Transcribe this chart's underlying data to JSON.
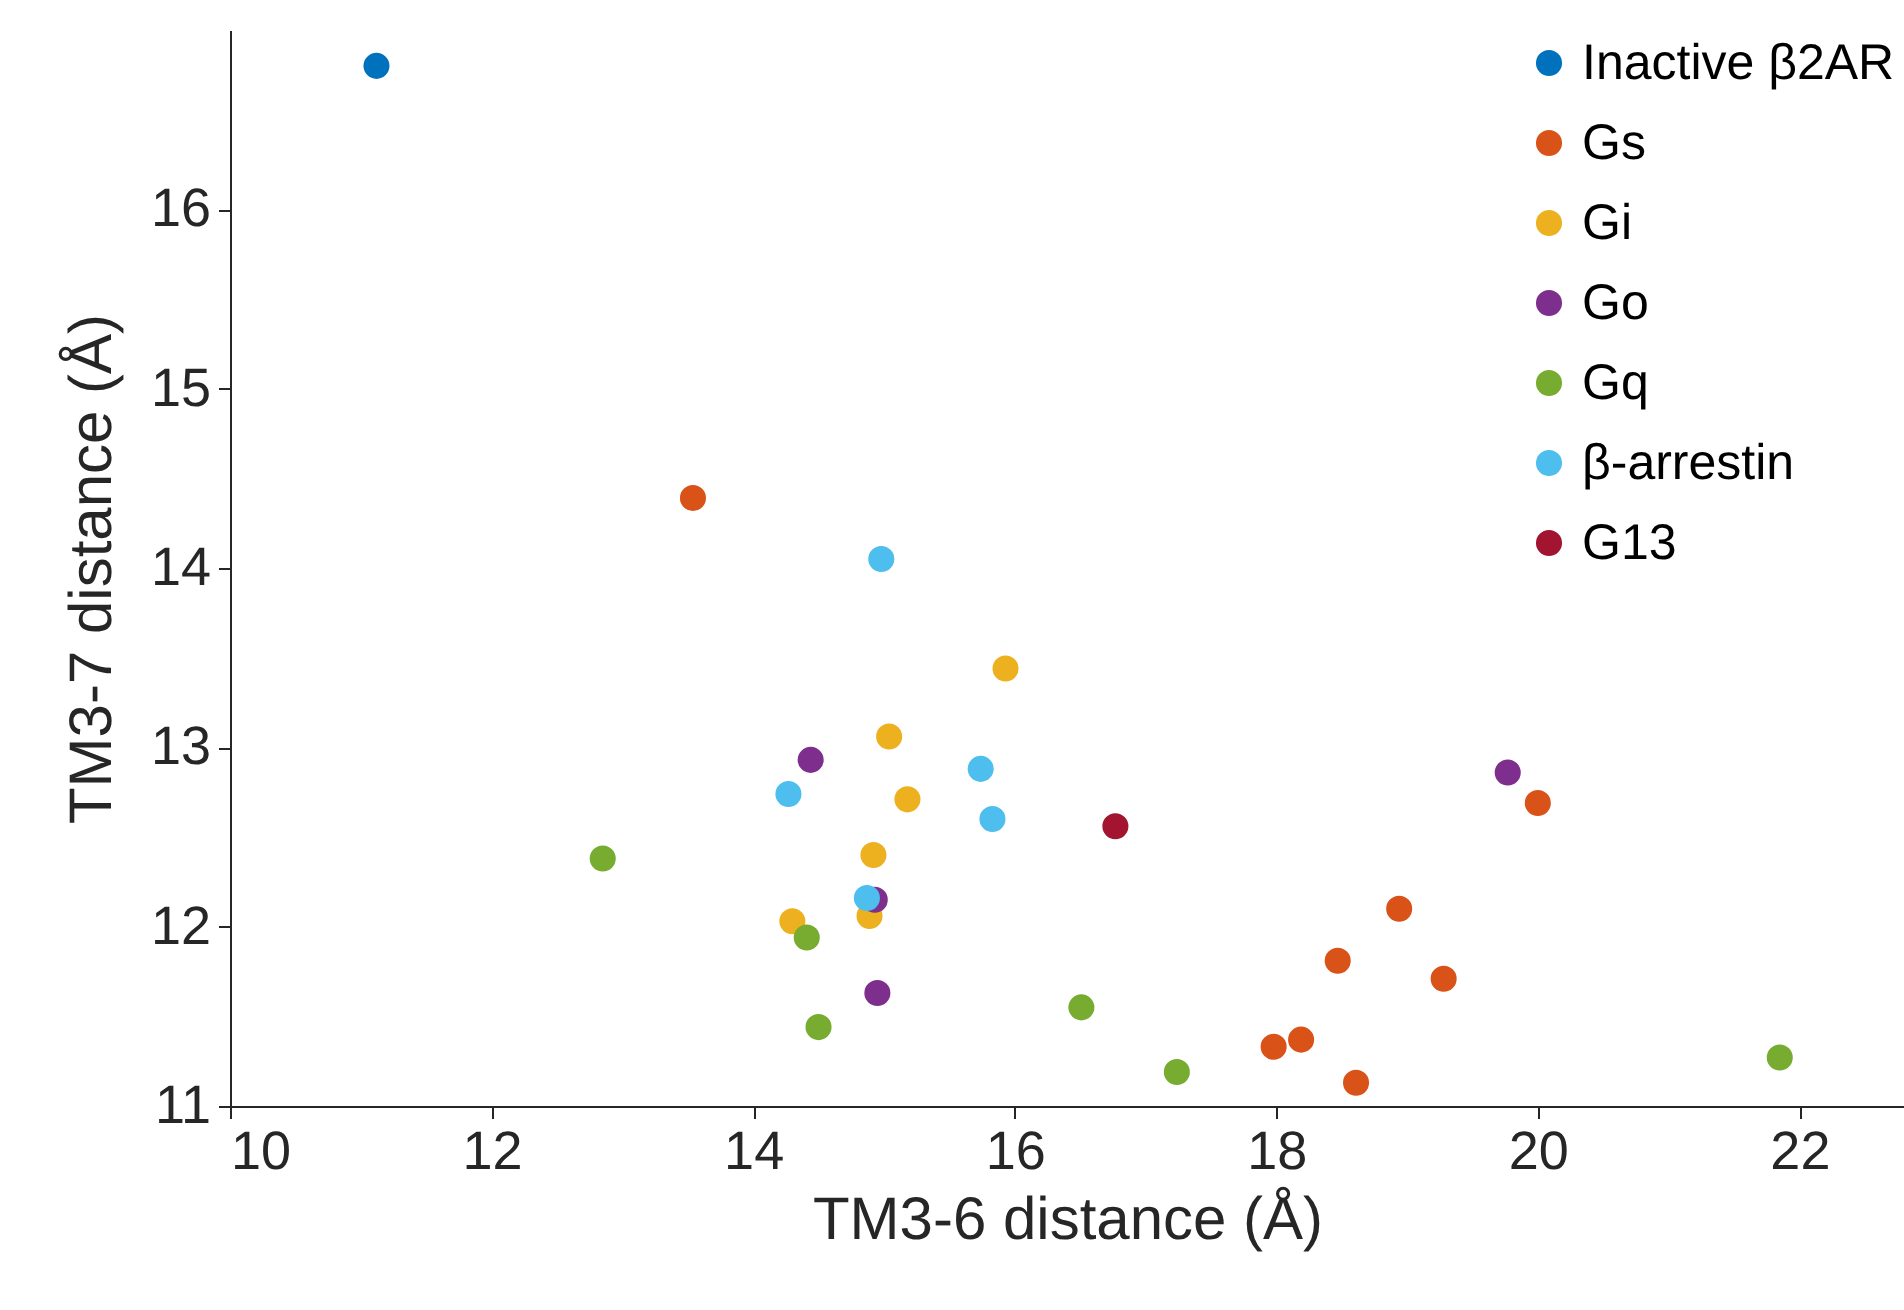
{
  "chart_data": {
    "type": "scatter",
    "xlabel": "TM3-6 distance (Å)",
    "ylabel": "TM3-7 distance (Å)",
    "xlim": [
      10,
      22.8
    ],
    "ylim": [
      11,
      17
    ],
    "xticks": [
      10,
      12,
      14,
      16,
      18,
      20,
      22
    ],
    "yticks": [
      11,
      12,
      13,
      14,
      15,
      16
    ],
    "grid": false,
    "legend": "top right",
    "marker": "circle",
    "series": [
      {
        "name": "Inactive β2AR",
        "color": "#0072bd",
        "x": [
          11.12
        ],
        "values": [
          16.8
        ]
      },
      {
        "name": "Gs",
        "color": "#d95319",
        "x": [
          13.54,
          17.98,
          18.19,
          18.61,
          18.47,
          18.94,
          19.28,
          20.0
        ],
        "values": [
          14.39,
          11.33,
          11.37,
          11.13,
          11.81,
          12.1,
          11.71,
          12.69
        ]
      },
      {
        "name": "Gi",
        "color": "#edb120",
        "x": [
          15.93,
          15.04,
          15.18,
          14.92,
          14.3,
          14.89
        ],
        "values": [
          13.44,
          13.06,
          12.71,
          12.4,
          12.03,
          12.06
        ]
      },
      {
        "name": "Go",
        "color": "#7e2f8e",
        "x": [
          14.44,
          14.93,
          14.95,
          19.77
        ],
        "values": [
          12.93,
          12.15,
          11.63,
          12.86
        ]
      },
      {
        "name": "Gq",
        "color": "#77ac30",
        "x": [
          12.85,
          14.41,
          14.5,
          16.51,
          17.24,
          21.85
        ],
        "values": [
          12.38,
          11.94,
          11.44,
          11.55,
          11.19,
          11.27
        ]
      },
      {
        "name": "β-arrestin",
        "color": "#4dbeee",
        "x": [
          14.98,
          14.27,
          15.74,
          15.83,
          14.87
        ],
        "values": [
          14.05,
          12.74,
          12.88,
          12.6,
          12.16
        ]
      },
      {
        "name": "G13",
        "color": "#a2142f",
        "x": [
          16.77
        ],
        "values": [
          12.56
        ]
      }
    ]
  }
}
